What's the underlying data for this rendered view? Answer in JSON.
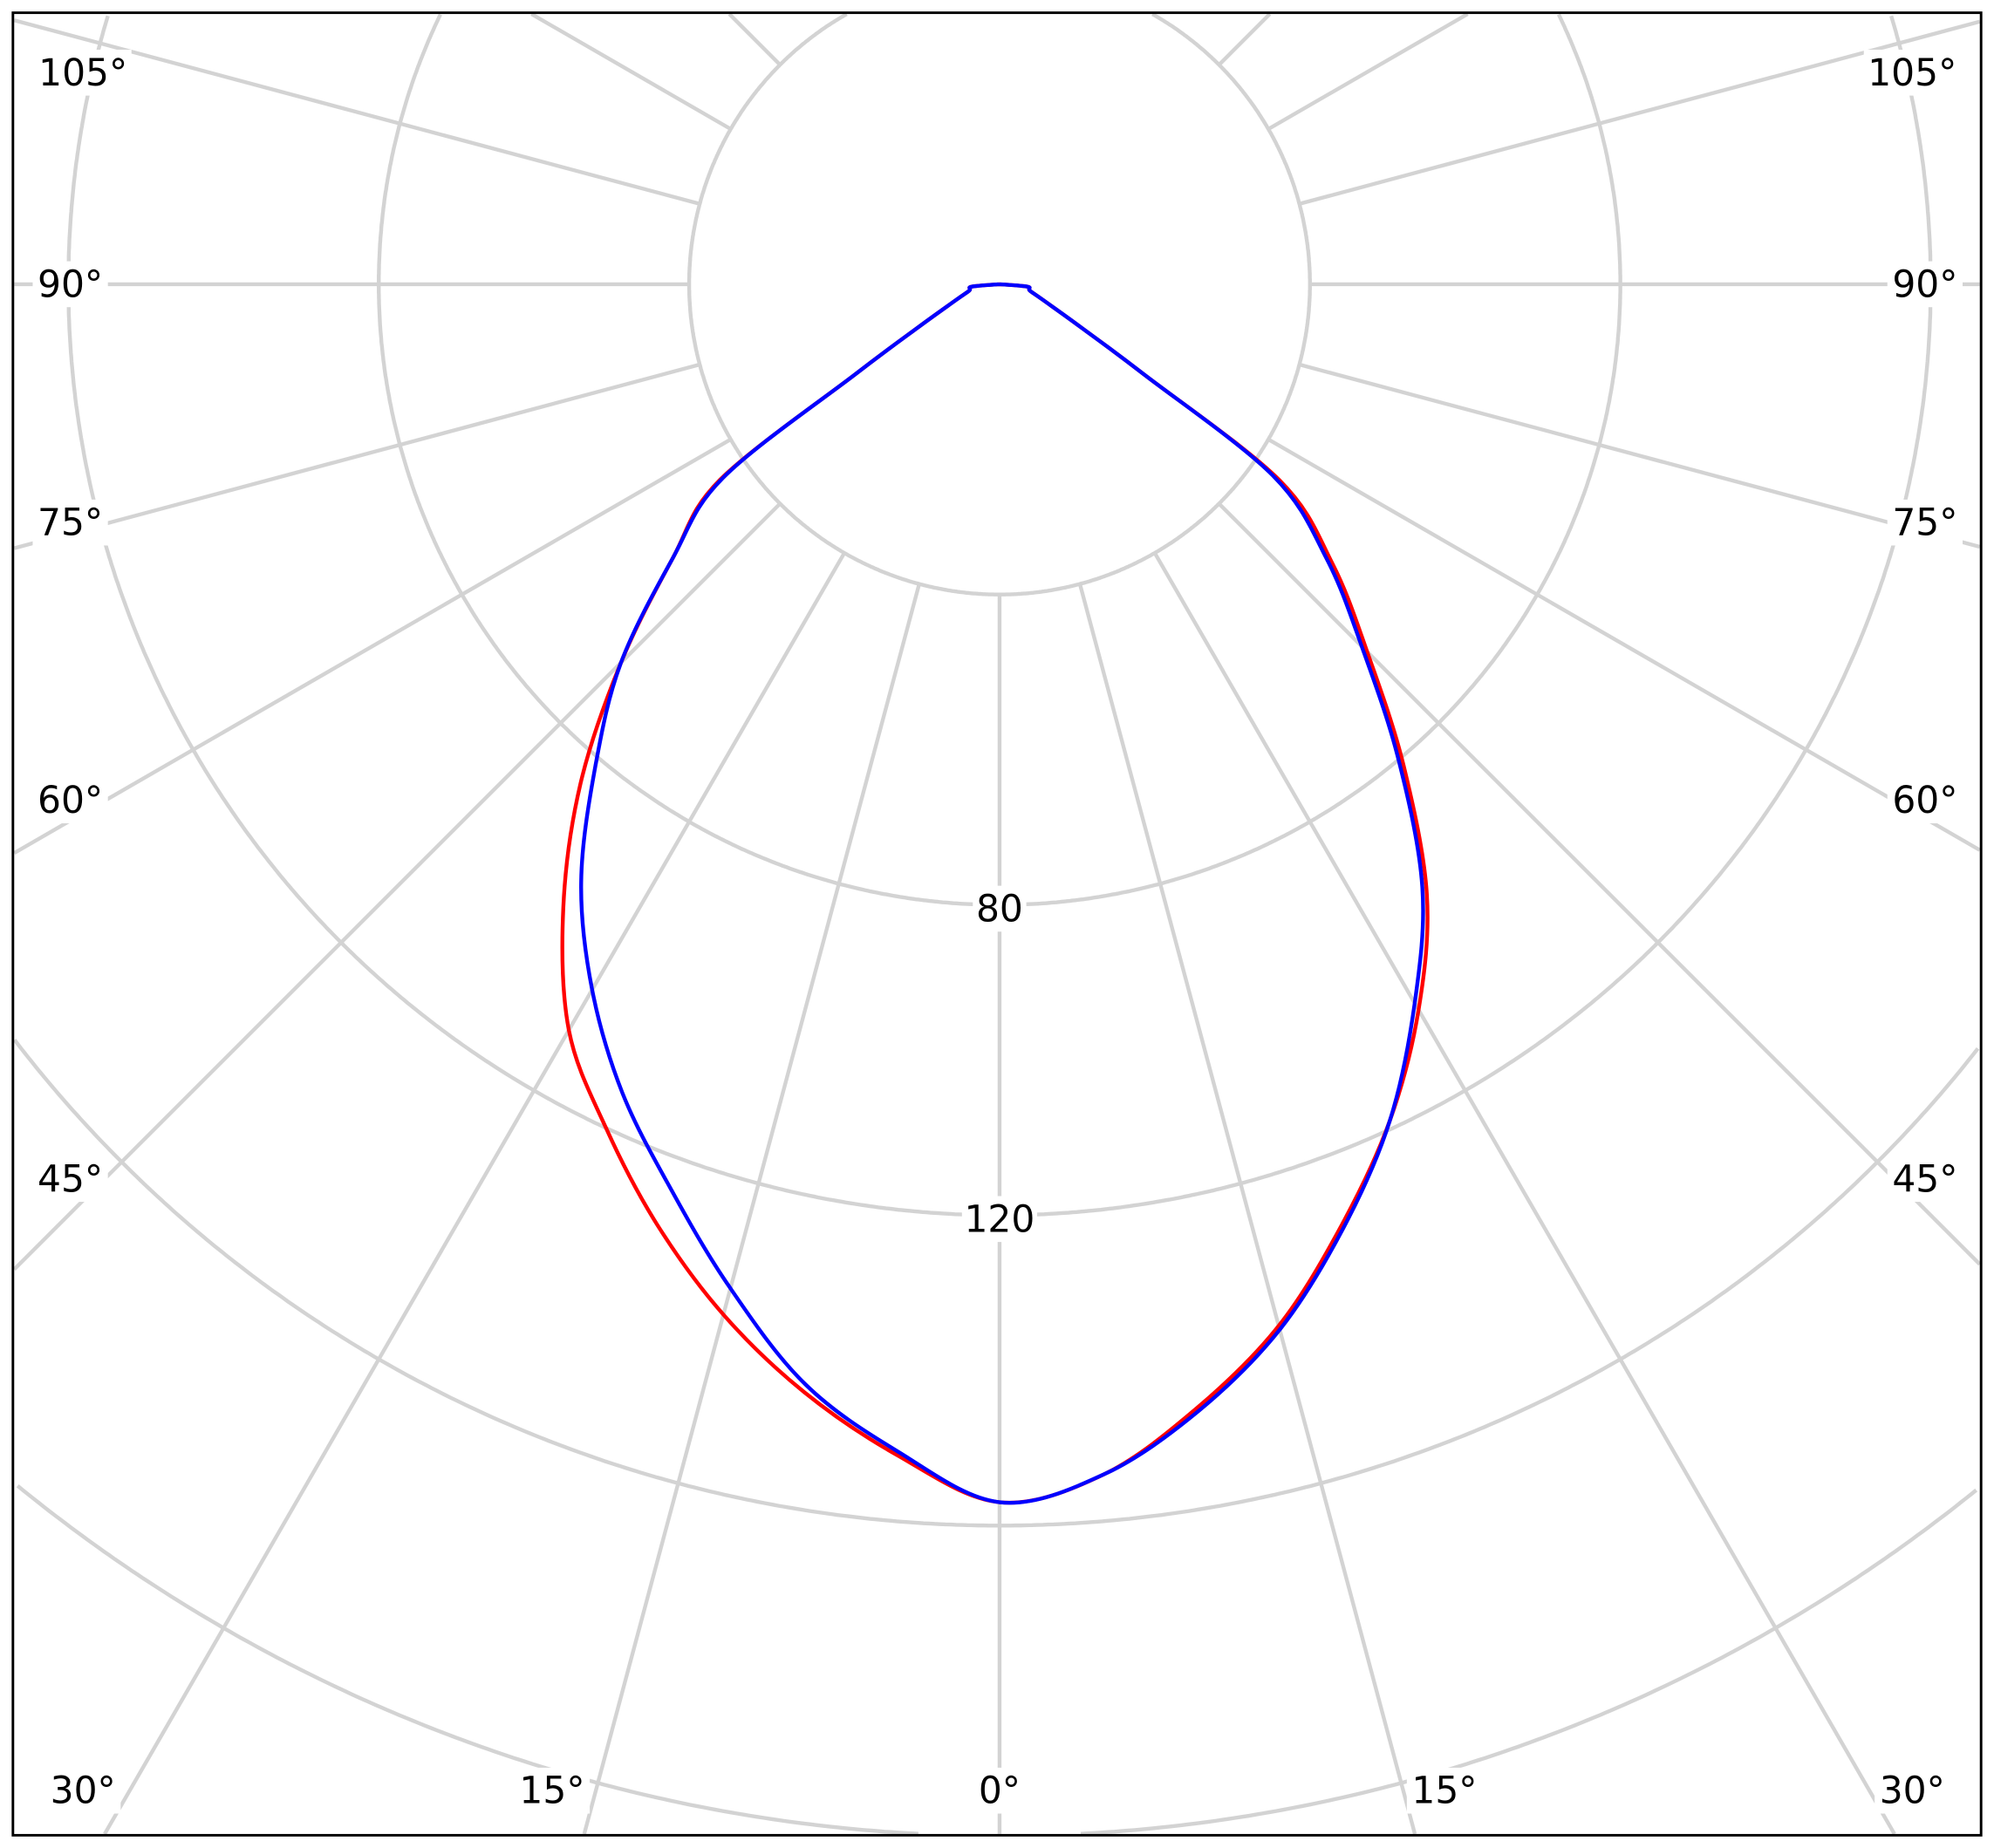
{
  "chart_data": {
    "type": "polar-line",
    "title": "",
    "angle_zero": "bottom",
    "radial_ticks": [
      40,
      80,
      120,
      160,
      200,
      240
    ],
    "radial_tick_labels": [
      "80",
      "120"
    ],
    "radial_tick_label_values": [
      80,
      120
    ],
    "angle_ticks_deg": [
      0,
      15,
      30,
      45,
      60,
      75,
      90,
      105
    ],
    "angle_tick_labels": {
      "left": [
        "105°",
        "90°",
        "75°",
        "60°",
        "45°",
        "30°",
        "15°",
        "0°"
      ],
      "right": [
        "105°",
        "90°",
        "75°",
        "60°",
        "45°",
        "30°",
        "15°"
      ]
    },
    "grid": true,
    "grid_color": "#d3d3d3",
    "angles_deg": [
      0,
      5,
      10,
      15,
      20,
      25,
      30,
      35,
      40,
      45,
      50,
      55,
      58,
      62,
      70,
      78,
      85,
      90
    ],
    "series": [
      {
        "color": "#ff0000",
        "left": [
          157,
          151.5,
          145,
          137.5,
          129,
          120,
          111,
          98,
          84,
          69,
          55,
          44,
          22,
          12,
          6,
          4,
          3.6,
          0
        ],
        "right": [
          157,
          154,
          147,
          139,
          129,
          119,
          108,
          96,
          81,
          67,
          56,
          44,
          22,
          12,
          6,
          4,
          3.6,
          0
        ]
      },
      {
        "color": "#0000ff",
        "left": [
          157,
          151,
          144,
          134,
          124,
          115,
          105,
          94,
          81,
          69,
          55,
          43.5,
          22,
          12,
          6,
          4,
          3.6,
          0
        ],
        "right": [
          157,
          154,
          147.5,
          139.5,
          129.5,
          119,
          107,
          95,
          80,
          66,
          55,
          43,
          22,
          12,
          6,
          4,
          3.6,
          0
        ]
      }
    ]
  }
}
